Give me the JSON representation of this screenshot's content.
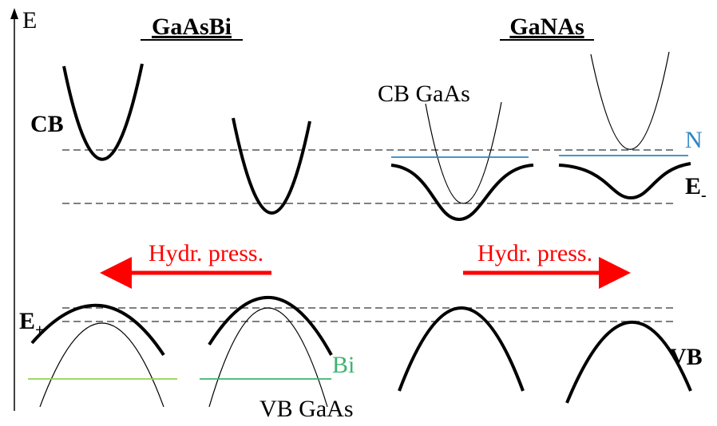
{
  "axis_label": "E",
  "panels": [
    {
      "title": "GaAsBi"
    },
    {
      "title": "GaNAs"
    }
  ],
  "labels": {
    "cb": "CB",
    "cb_gaas": "CB GaAs",
    "n": "N",
    "e_minus": {
      "text": "E",
      "sub": "-"
    },
    "pressure_left": "Hydr. press.",
    "pressure_right": "Hydr. press.",
    "e_plus": {
      "text": "E",
      "sub": "+"
    },
    "bi": "Bi",
    "vb": "VB",
    "vb_gaas": "VB GaAs"
  }
}
